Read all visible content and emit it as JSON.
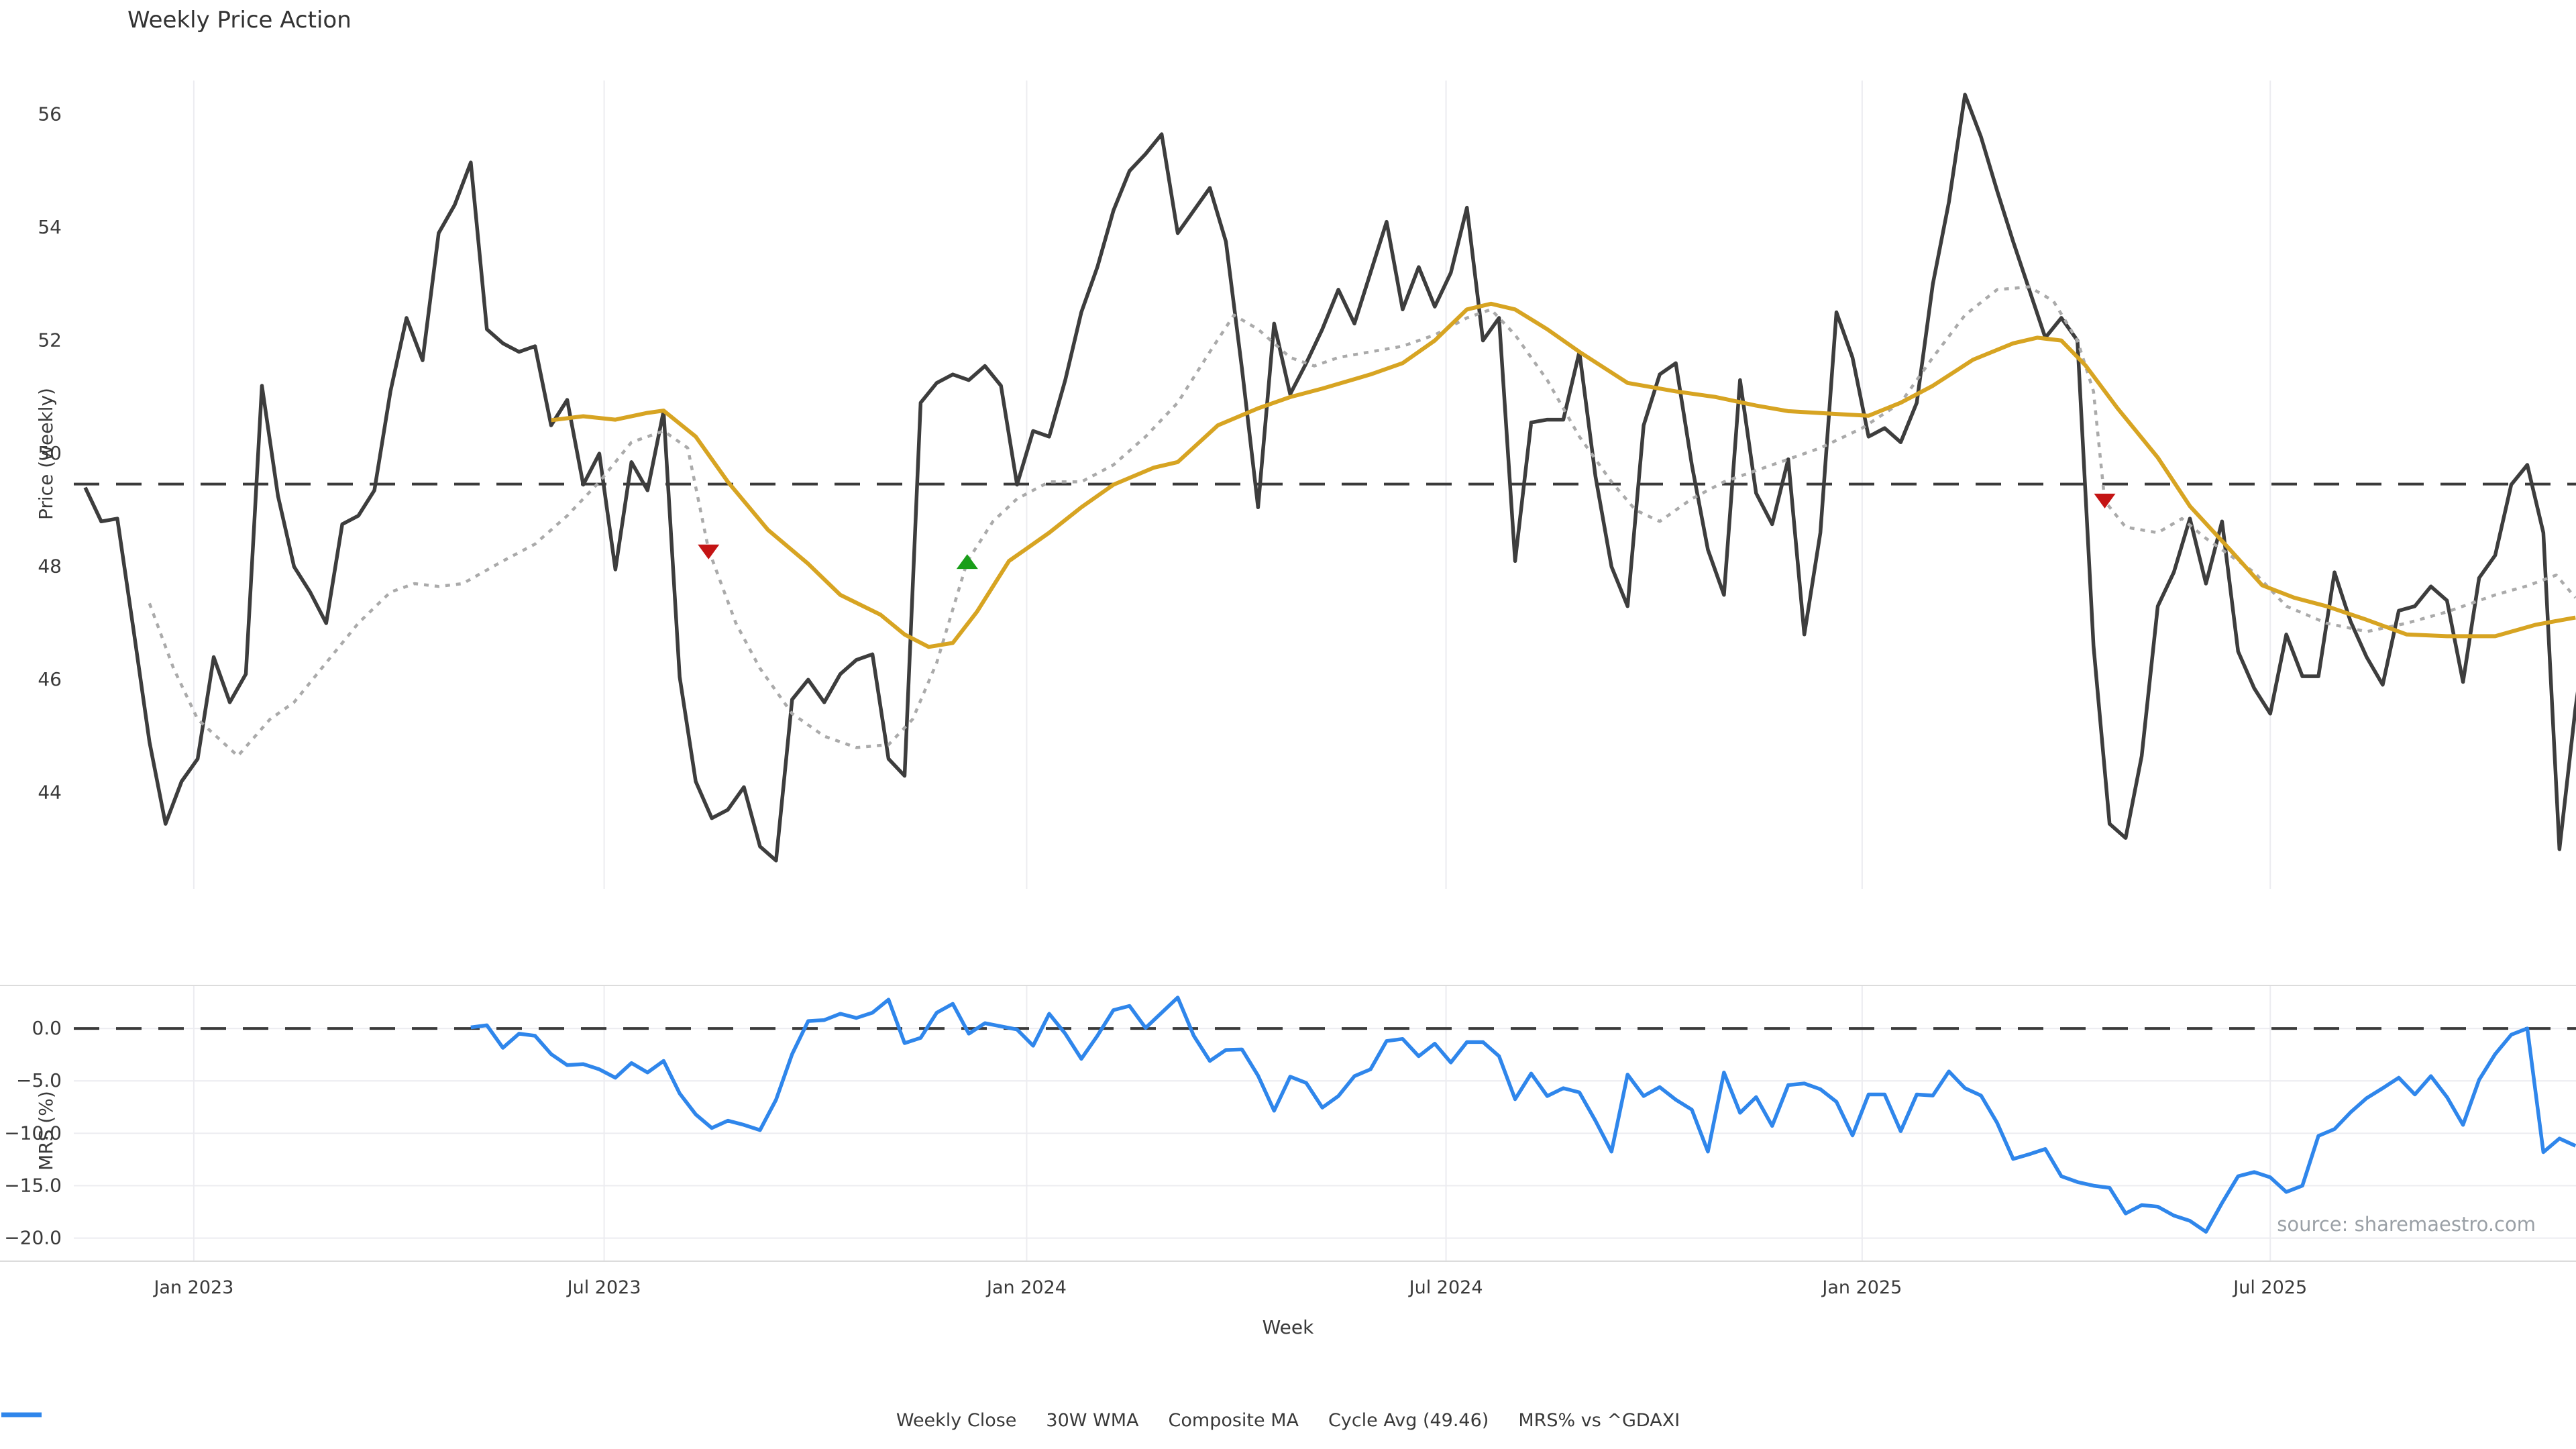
{
  "title": "Weekly Price Action",
  "xlabel": "Week",
  "source": "source: sharemaestro.com",
  "legend": [
    {
      "label": "Weekly Close",
      "color": "#3d3d3d",
      "style": "solid"
    },
    {
      "label": "30W WMA",
      "color": "#d7a422",
      "style": "solid"
    },
    {
      "label": "Composite MA",
      "color": "#aaaaaa",
      "style": "dotted"
    },
    {
      "label": "Cycle Avg (49.46)",
      "color": "#3a3a3a",
      "style": "dashed"
    },
    {
      "label": "MRS% vs ^GDAXI",
      "color": "#2f86eb",
      "style": "solid"
    }
  ],
  "colors": {
    "weekly_close": "#3d3d3d",
    "wma_30w": "#d7a422",
    "composite_ma": "#aaaaaa",
    "cycle_avg": "#3a3a3a",
    "mrs": "#2f86eb",
    "gridline": "#ececf0",
    "spine": "#dcdcdc",
    "sell_marker": "#c41414",
    "buy_marker": "#1a9e1a",
    "tick_text": "#3a3a3a"
  },
  "chart_data": {
    "type": "line",
    "x_unit": "week_index",
    "x_ticks": [
      {
        "label": "Jan 2023",
        "week": 6.76
      },
      {
        "label": "Jul 2023",
        "week": 32.3
      },
      {
        "label": "Jan 2024",
        "week": 58.6
      },
      {
        "label": "Jul 2024",
        "week": 84.7
      },
      {
        "label": "Jan 2025",
        "week": 110.6
      },
      {
        "label": "Jul 2025",
        "week": 136.0
      }
    ],
    "price_panel": {
      "ylabel": "Price (weekly)",
      "ylim": [
        42.3,
        56.6
      ],
      "yticks": [
        {
          "v": 44,
          "label": "44"
        },
        {
          "v": 46,
          "label": "46"
        },
        {
          "v": 48,
          "label": "48"
        },
        {
          "v": 50,
          "label": "50"
        },
        {
          "v": 52,
          "label": "52"
        },
        {
          "v": 54,
          "label": "54"
        },
        {
          "v": 56,
          "label": "56"
        }
      ],
      "cycle_avg": 49.46,
      "weekly_close": {
        "name": "Weekly Close",
        "start_week": 0,
        "values": [
          49.4,
          48.8,
          48.85,
          46.9,
          44.9,
          43.45,
          44.2,
          44.6,
          46.4,
          45.6,
          46.1,
          51.2,
          49.25,
          48.0,
          47.55,
          47.0,
          48.75,
          48.9,
          49.35,
          51.1,
          52.4,
          51.65,
          53.9,
          54.4,
          55.15,
          52.2,
          51.95,
          51.8,
          51.9,
          50.5,
          50.95,
          49.45,
          50.0,
          47.95,
          49.85,
          49.35,
          50.75,
          46.05,
          44.2,
          43.55,
          43.7,
          44.1,
          43.05,
          42.8,
          45.65,
          46.0,
          45.6,
          46.1,
          46.35,
          46.45,
          44.6,
          44.3,
          50.9,
          51.25,
          51.4,
          51.3,
          51.55,
          51.2,
          49.45,
          50.4,
          50.3,
          51.3,
          52.5,
          53.3,
          54.3,
          55.0,
          55.3,
          55.65,
          53.9,
          54.3,
          54.7,
          53.75,
          51.5,
          49.05,
          52.3,
          51.05,
          51.6,
          52.2,
          52.9,
          52.3,
          53.2,
          54.1,
          52.55,
          53.3,
          52.6,
          53.2,
          54.35,
          52.0,
          52.4,
          48.1,
          50.55,
          50.6,
          50.6,
          51.8,
          49.6,
          48.0,
          47.3,
          50.5,
          51.4,
          51.6,
          49.8,
          48.3,
          47.5,
          51.3,
          49.3,
          48.75,
          49.9,
          46.8,
          48.6,
          52.5,
          51.7,
          50.3,
          50.45,
          50.2,
          50.9,
          53.0,
          54.45,
          56.35,
          55.6,
          54.65,
          53.75,
          52.9,
          52.05,
          52.4,
          52.0,
          46.6,
          43.45,
          43.2,
          44.65,
          47.3,
          47.9,
          48.85,
          47.7,
          48.8,
          46.5,
          45.85,
          45.4,
          46.8,
          46.06,
          46.06,
          47.9,
          47.03,
          46.4,
          45.91,
          47.22,
          47.3,
          47.65,
          47.4,
          45.96,
          47.8,
          48.2,
          49.45,
          49.8,
          48.6,
          43.0,
          45.5,
          47.5
        ]
      },
      "wma_30w": {
        "name": "30W WMA",
        "points": [
          [
            29,
            50.59
          ],
          [
            31,
            50.66
          ],
          [
            33,
            50.6
          ],
          [
            35,
            50.72
          ],
          [
            36,
            50.76
          ],
          [
            38,
            50.3
          ],
          [
            40,
            49.5
          ],
          [
            42.5,
            48.65
          ],
          [
            45,
            48.05
          ],
          [
            47,
            47.5
          ],
          [
            49.5,
            47.15
          ],
          [
            51,
            46.8
          ],
          [
            52.5,
            46.58
          ],
          [
            54,
            46.65
          ],
          [
            55.5,
            47.2
          ],
          [
            57.5,
            48.1
          ],
          [
            60,
            48.6
          ],
          [
            62,
            49.05
          ],
          [
            64,
            49.45
          ],
          [
            66.5,
            49.75
          ],
          [
            68,
            49.85
          ],
          [
            70.5,
            50.5
          ],
          [
            73,
            50.8
          ],
          [
            75,
            51.0
          ],
          [
            77,
            51.15
          ],
          [
            80,
            51.4
          ],
          [
            82,
            51.6
          ],
          [
            84,
            52.0
          ],
          [
            86,
            52.55
          ],
          [
            87.5,
            52.65
          ],
          [
            89,
            52.55
          ],
          [
            91,
            52.2
          ],
          [
            93,
            51.8
          ],
          [
            96,
            51.25
          ],
          [
            99,
            51.1
          ],
          [
            101.5,
            51.0
          ],
          [
            104,
            50.85
          ],
          [
            106,
            50.75
          ],
          [
            109,
            50.7
          ],
          [
            111,
            50.67
          ],
          [
            113,
            50.9
          ],
          [
            115,
            51.2
          ],
          [
            117.5,
            51.66
          ],
          [
            120,
            51.95
          ],
          [
            121.5,
            52.05
          ],
          [
            123,
            52.0
          ],
          [
            124.5,
            51.56
          ],
          [
            126.5,
            50.8
          ],
          [
            129,
            49.93
          ],
          [
            131,
            49.07
          ],
          [
            133.5,
            48.3
          ],
          [
            135.5,
            47.67
          ],
          [
            137.5,
            47.45
          ],
          [
            139.5,
            47.3
          ],
          [
            142,
            47.06
          ],
          [
            144.5,
            46.8
          ],
          [
            147,
            46.77
          ],
          [
            150,
            46.77
          ],
          [
            152.5,
            46.97
          ],
          [
            155,
            47.1
          ]
        ]
      },
      "composite_ma": {
        "name": "Composite MA",
        "points": [
          [
            4,
            47.35
          ],
          [
            5.5,
            46.2
          ],
          [
            7,
            45.3
          ],
          [
            9.5,
            44.65
          ],
          [
            11.5,
            45.3
          ],
          [
            13,
            45.6
          ],
          [
            15,
            46.3
          ],
          [
            17,
            47.0
          ],
          [
            19,
            47.55
          ],
          [
            20.5,
            47.7
          ],
          [
            22,
            47.65
          ],
          [
            23.5,
            47.7
          ],
          [
            26,
            48.1
          ],
          [
            28,
            48.4
          ],
          [
            30,
            48.9
          ],
          [
            32,
            49.5
          ],
          [
            34,
            50.2
          ],
          [
            36,
            50.4
          ],
          [
            37.5,
            50.1
          ],
          [
            38.8,
            48.3
          ],
          [
            40.5,
            47.0
          ],
          [
            42,
            46.2
          ],
          [
            44,
            45.4
          ],
          [
            46,
            45.0
          ],
          [
            48,
            44.8
          ],
          [
            50,
            44.85
          ],
          [
            51.5,
            45.3
          ],
          [
            53,
            46.3
          ],
          [
            54.9,
            48.09
          ],
          [
            56.5,
            48.8
          ],
          [
            58,
            49.2
          ],
          [
            60,
            49.5
          ],
          [
            62,
            49.5
          ],
          [
            64,
            49.8
          ],
          [
            66,
            50.3
          ],
          [
            68,
            50.9
          ],
          [
            70,
            51.8
          ],
          [
            71.5,
            52.45
          ],
          [
            73,
            52.2
          ],
          [
            75,
            51.7
          ],
          [
            76.5,
            51.55
          ],
          [
            78,
            51.7
          ],
          [
            80,
            51.8
          ],
          [
            82,
            51.9
          ],
          [
            84,
            52.1
          ],
          [
            86,
            52.4
          ],
          [
            87.5,
            52.55
          ],
          [
            89,
            52.1
          ],
          [
            91,
            51.3
          ],
          [
            93,
            50.3
          ],
          [
            95,
            49.5
          ],
          [
            96.5,
            49.0
          ],
          [
            98,
            48.8
          ],
          [
            100,
            49.2
          ],
          [
            102,
            49.5
          ],
          [
            104,
            49.7
          ],
          [
            106,
            49.9
          ],
          [
            108,
            50.1
          ],
          [
            110.6,
            50.45
          ],
          [
            113,
            50.9
          ],
          [
            115,
            51.7
          ],
          [
            117,
            52.45
          ],
          [
            119,
            52.9
          ],
          [
            121,
            52.95
          ],
          [
            122.5,
            52.7
          ],
          [
            124,
            52.0
          ],
          [
            125,
            51.1
          ],
          [
            125.7,
            49.16
          ],
          [
            127,
            48.7
          ],
          [
            129,
            48.6
          ],
          [
            130.5,
            48.85
          ],
          [
            132,
            48.5
          ],
          [
            133.5,
            48.2
          ],
          [
            135,
            47.9
          ],
          [
            137,
            47.3
          ],
          [
            139.5,
            47.0
          ],
          [
            142,
            46.85
          ],
          [
            144.5,
            47.0
          ],
          [
            147,
            47.2
          ],
          [
            150,
            47.5
          ],
          [
            152,
            47.66
          ],
          [
            153.8,
            47.85
          ],
          [
            155,
            47.45
          ]
        ]
      },
      "markers": {
        "sell": [
          {
            "week": 38.8,
            "value": 48.26
          },
          {
            "week": 125.7,
            "value": 49.16
          }
        ],
        "buy": [
          {
            "week": 54.9,
            "value": 48.09
          }
        ]
      }
    },
    "mrs_panel": {
      "ylabel": "MRS (%)",
      "ylim": [
        -22.2,
        4.1
      ],
      "yticks": [
        {
          "v": 0,
          "label": "0.0"
        },
        {
          "v": -5,
          "label": "−5.0"
        },
        {
          "v": -10,
          "label": "−10.0"
        },
        {
          "v": -15,
          "label": "−15.0"
        },
        {
          "v": -20,
          "label": "−20.0"
        }
      ],
      "zero_line": 0.0,
      "mrs": {
        "name": "MRS% vs ^GDAXI",
        "start_week": 24,
        "values": [
          0.1,
          0.3,
          -1.85,
          -0.5,
          -0.7,
          -2.45,
          -3.5,
          -3.4,
          -3.9,
          -4.7,
          -3.3,
          -4.2,
          -3.1,
          -6.2,
          -8.2,
          -9.5,
          -8.8,
          -9.2,
          -9.7,
          -6.8,
          -2.45,
          0.7,
          0.8,
          1.4,
          1.0,
          1.5,
          2.75,
          -1.4,
          -0.9,
          1.5,
          2.35,
          -0.5,
          0.5,
          0.2,
          -0.1,
          -1.65,
          1.4,
          -0.5,
          -2.9,
          -0.7,
          1.75,
          2.15,
          0.05,
          1.5,
          2.95,
          -0.7,
          -3.1,
          -2.05,
          -2.0,
          -4.5,
          -7.85,
          -4.6,
          -5.2,
          -7.55,
          -6.45,
          -4.55,
          -3.9,
          -1.2,
          -1.0,
          -2.65,
          -1.45,
          -3.25,
          -1.3,
          -1.3,
          -2.65,
          -6.75,
          -4.3,
          -6.45,
          -5.7,
          -6.1,
          -8.8,
          -11.75,
          -4.4,
          -6.45,
          -5.6,
          -6.8,
          -7.75,
          -11.75,
          -4.2,
          -8.05,
          -6.55,
          -9.3,
          -5.4,
          -5.25,
          -5.8,
          -7.0,
          -10.2,
          -6.3,
          -6.3,
          -9.8,
          -6.3,
          -6.4,
          -4.1,
          -5.7,
          -6.4,
          -9.0,
          -12.45,
          -12.0,
          -11.5,
          -14.1,
          -14.65,
          -15.0,
          -15.2,
          -17.65,
          -16.85,
          -17.0,
          -17.85,
          -18.35,
          -19.4,
          -16.65,
          -14.1,
          -13.7,
          -14.2,
          -15.6,
          -15.0,
          -10.25,
          -9.6,
          -8.0,
          -6.65,
          -5.7,
          -4.7,
          -6.3,
          -4.55,
          -6.55,
          -9.2,
          -4.9,
          -2.45,
          -0.6,
          0.0,
          -11.8,
          -10.5,
          -11.2
        ]
      }
    }
  }
}
